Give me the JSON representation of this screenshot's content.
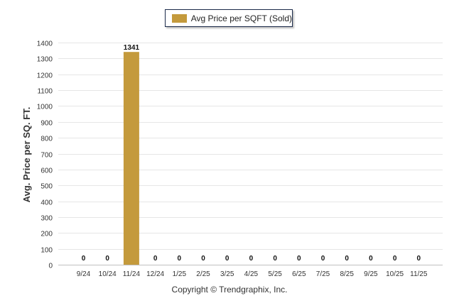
{
  "chart_data": {
    "type": "bar",
    "categories": [
      "9/24",
      "10/24",
      "11/24",
      "12/24",
      "1/25",
      "2/25",
      "3/25",
      "4/25",
      "5/25",
      "6/25",
      "7/25",
      "8/25",
      "9/25",
      "10/25",
      "11/25"
    ],
    "series": [
      {
        "name": "Avg Price per SQFT (Sold)",
        "values": [
          0,
          0,
          1341,
          0,
          0,
          0,
          0,
          0,
          0,
          0,
          0,
          0,
          0,
          0,
          0
        ],
        "color": "#c49a3c"
      }
    ],
    "data_labels": [
      "0",
      "0",
      "1341",
      "0",
      "0",
      "0",
      "0",
      "0",
      "0",
      "0",
      "0",
      "0",
      "0",
      "0",
      "0"
    ],
    "ylabel": "Avg. Price per SQ. FT.",
    "xlabel": "",
    "ylim": [
      0,
      1400
    ],
    "yticks": [
      0,
      100,
      200,
      300,
      400,
      500,
      600,
      700,
      800,
      900,
      1000,
      1100,
      1200,
      1300,
      1400
    ],
    "grid": true,
    "legend_position": "top-center"
  },
  "footer": {
    "copyright": "Copyright © Trendgraphix, Inc."
  }
}
